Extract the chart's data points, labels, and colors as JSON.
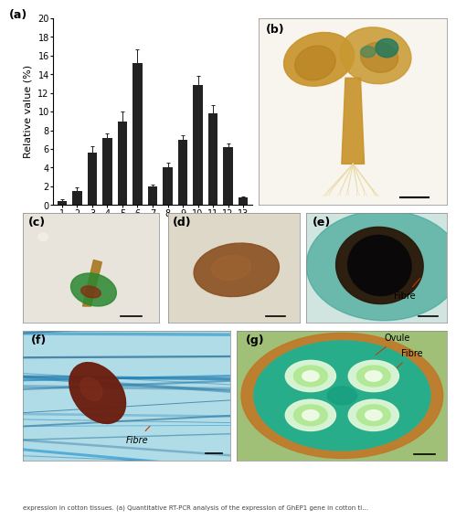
{
  "bar_values": [
    0.45,
    1.5,
    5.6,
    7.2,
    8.9,
    15.2,
    2.0,
    4.0,
    7.0,
    12.8,
    9.8,
    6.2,
    0.8
  ],
  "bar_errors": [
    0.15,
    0.4,
    0.7,
    0.5,
    1.1,
    1.5,
    0.2,
    0.5,
    0.5,
    1.0,
    0.9,
    0.4,
    0.15
  ],
  "bar_color": "#222222",
  "error_color": "#222222",
  "x_labels": [
    "1",
    "2",
    "3",
    "4",
    "5",
    "6",
    "7",
    "8",
    "9",
    "10",
    "11",
    "12",
    "13"
  ],
  "ylabel": "Relative value (%)",
  "ylim": [
    0,
    20
  ],
  "yticks": [
    0,
    2,
    4,
    6,
    8,
    10,
    12,
    14,
    16,
    18,
    20
  ],
  "panel_label_a": "(a)",
  "panel_label_b": "(b)",
  "panel_label_c": "(c)",
  "panel_label_d": "(d)",
  "panel_label_e": "(e)",
  "panel_label_f": "(f)",
  "panel_label_g": "(g)",
  "label_fibre_e": "Fibre",
  "label_ovule_g": "Ovule",
  "label_fibre_f": "Fibre",
  "label_fibre_g": "Fibre",
  "bg_color": "#ffffff",
  "bar_width": 0.65,
  "font_size_ylabel": 8,
  "font_size_tick": 7,
  "font_size_panel": 9,
  "font_size_annot": 7,
  "b_bg": "#f5f0e8",
  "b_seedling_color": "#c8921a",
  "b_green_spot": "#2a7a5a",
  "c_bg": "#e8e8e0",
  "c_seedling_brown": "#9a7828",
  "c_seedling_green": "#2a7a28",
  "d_bg": "#e0d4b8",
  "d_seed_color": "#8a5828",
  "e_bg": "#d8e8e8",
  "e_outer": "#2a8a88",
  "e_inner": "#1a1a10",
  "f_bg": "#c8eaf0",
  "f_seed_color": "#6a2810",
  "f_fiber_color": "#40a8d0",
  "g_bg": "#c8d890",
  "g_outer_ring": "#c87828",
  "g_teal": "#20a890",
  "g_ovule_outer": "#e0f8d0",
  "g_ovule_inner": "#a0e880",
  "g_ovule_center": "#e8f8e8",
  "annot_line_color": "#cc0000"
}
